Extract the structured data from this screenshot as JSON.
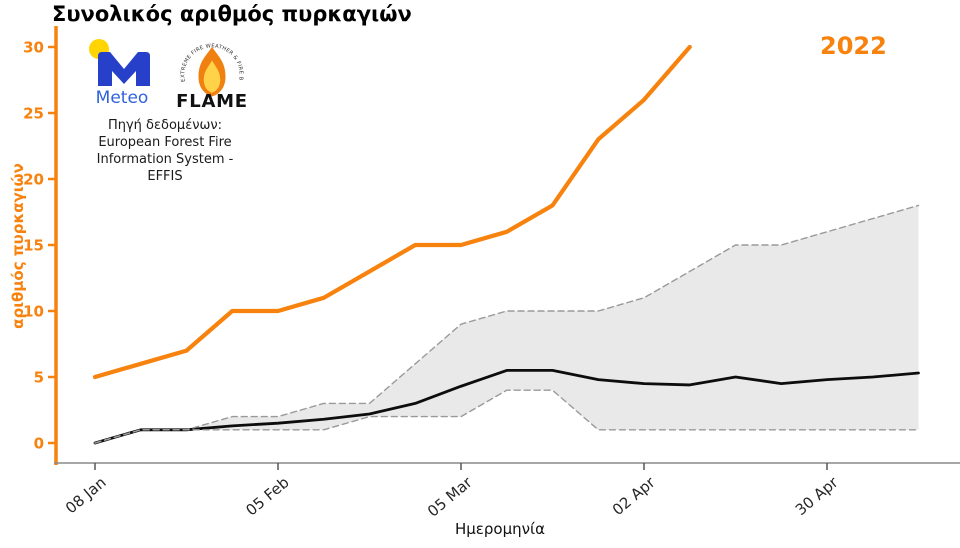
{
  "title": "Συνολικός αριθμός πυρκαγιών",
  "year_label": "2022",
  "source": {
    "line1": "Πηγή δεδομένων:",
    "line2": "European Forest Fire",
    "line3": "Information System -",
    "line4": "EFFIS"
  },
  "logos": {
    "meteo_text": "Meteo",
    "flame_text": "FLAME",
    "flame_arc_text": "EXTREME FIRE WEATHER & FIRE BEHAVIOUR"
  },
  "colors": {
    "accent_orange": "#f7820d",
    "mean_black": "#0d0d0d",
    "band_fill": "#e9e9e9",
    "band_border": "#9a9a9a",
    "axis_gray": "#8a8a8a",
    "xtick_gray": "#555555",
    "meteo_blue": "#2740c9",
    "meteo_yellow": "#ffd400"
  },
  "chart_data": {
    "type": "line",
    "title": "Συνολικός αριθμός πυρκαγιών",
    "xlabel": "Ημερομηνία",
    "ylabel": "αριθμός πυρκαγιών",
    "ylim": [
      0,
      30
    ],
    "yticks": [
      0,
      5,
      10,
      15,
      20,
      25,
      30
    ],
    "grid": false,
    "legend_position": "none",
    "x": [
      "08 Jan",
      "15 Jan",
      "22 Jan",
      "29 Jan",
      "05 Feb",
      "12 Feb",
      "19 Feb",
      "26 Feb",
      "05 Mar",
      "12 Mar",
      "19 Mar",
      "26 Mar",
      "02 Apr",
      "09 Apr",
      "16 Apr",
      "23 Apr",
      "30 Apr",
      "07 May",
      "14 May"
    ],
    "xtick_labels": [
      "08 Jan",
      "05 Feb",
      "05 Mar",
      "02 Apr",
      "30 Apr"
    ],
    "xtick_positions": [
      0,
      4,
      8,
      12,
      16
    ],
    "series": [
      {
        "name": "2022",
        "role": "current-year",
        "color": "#f7820d",
        "style": "solid",
        "width": 4.2,
        "values": [
          5,
          6,
          7,
          10,
          10,
          11,
          13,
          15,
          15,
          16,
          18,
          23,
          26,
          30,
          null,
          null,
          null,
          null,
          null
        ]
      },
      {
        "name": "mean",
        "role": "historical-mean",
        "color": "#0d0d0d",
        "style": "solid",
        "width": 2.8,
        "values": [
          0,
          1,
          1,
          1.3,
          1.5,
          1.8,
          2.2,
          3,
          4.3,
          5.5,
          5.5,
          4.8,
          4.5,
          4.4,
          5,
          4.5,
          4.8,
          5,
          5.3
        ]
      },
      {
        "name": "max",
        "role": "historical-max",
        "color": "#9a9a9a",
        "style": "dashed",
        "width": 1.4,
        "values": [
          0,
          1,
          1,
          2,
          2,
          3,
          3,
          6,
          9,
          10,
          10,
          10,
          11,
          13,
          15,
          15,
          16,
          17,
          18
        ]
      },
      {
        "name": "min",
        "role": "historical-min",
        "color": "#9a9a9a",
        "style": "dashed",
        "width": 1.4,
        "values": [
          0,
          1,
          1,
          1,
          1,
          1,
          2,
          2,
          2,
          4,
          4,
          1,
          1,
          1,
          1,
          1,
          1,
          1,
          1
        ]
      }
    ],
    "band": {
      "upper": "max",
      "lower": "min",
      "fill": "#e9e9e9"
    }
  }
}
